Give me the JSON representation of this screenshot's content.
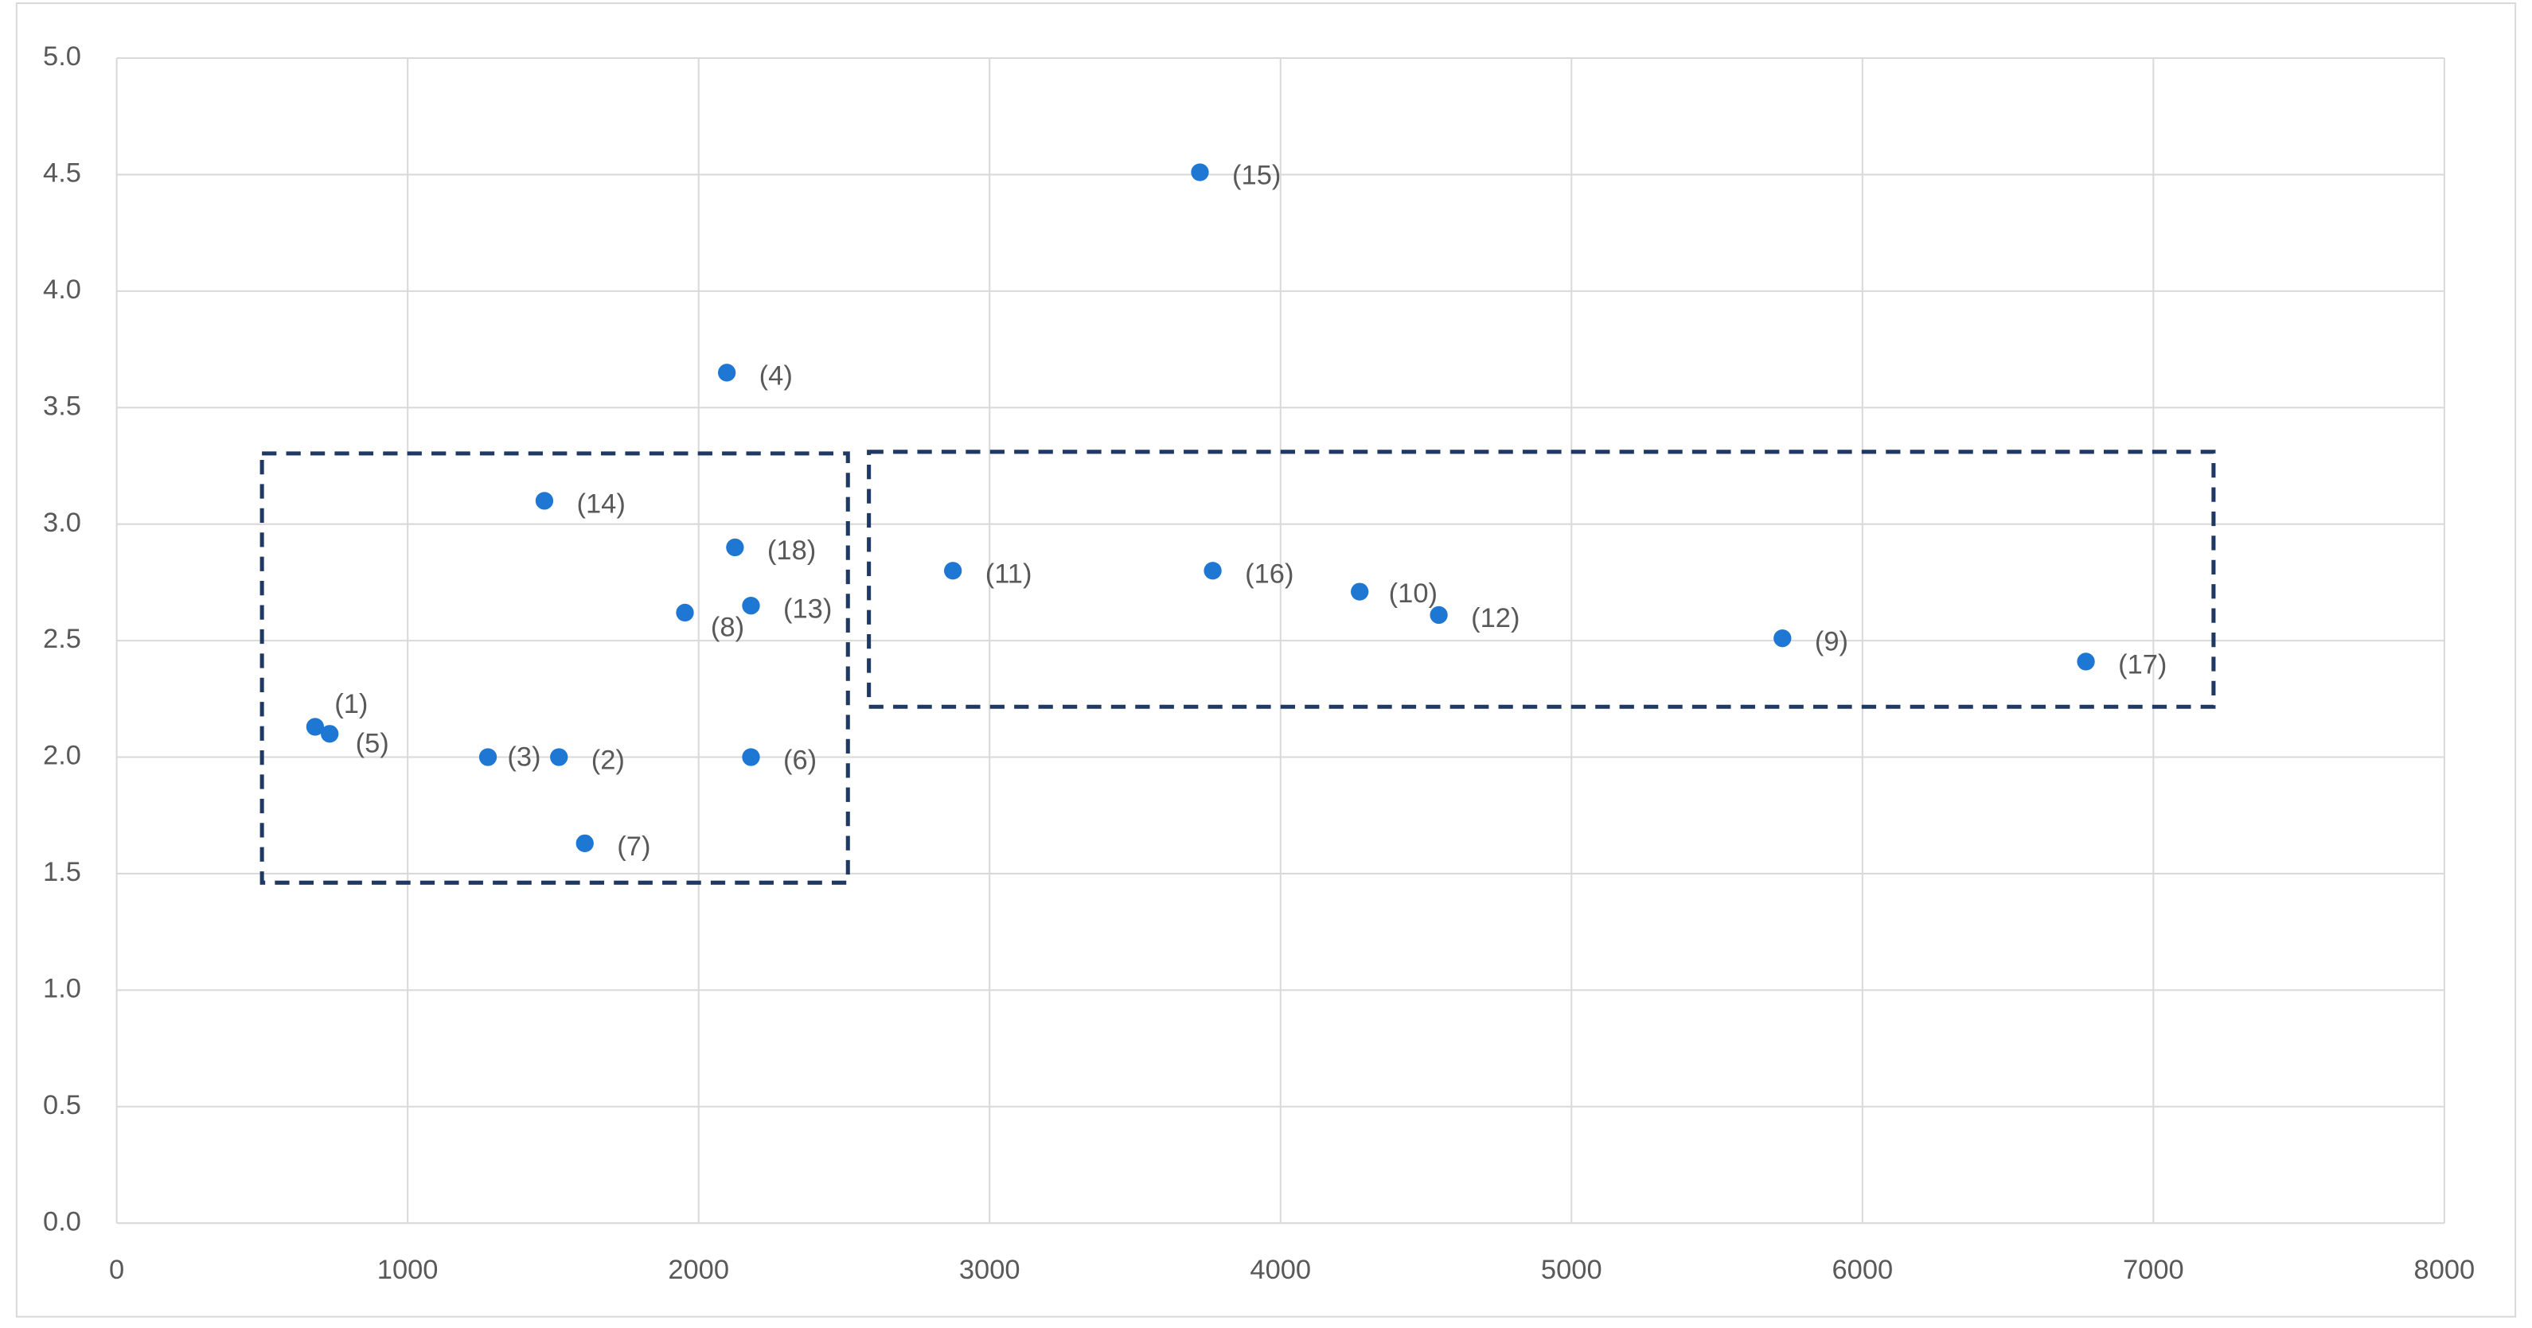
{
  "chart_data": {
    "type": "scatter",
    "x": [
      682,
      1520,
      1276,
      2097,
      732,
      2180,
      1609,
      1953,
      5725,
      4272,
      2874,
      4544,
      2180,
      1470,
      3723,
      3767,
      6768,
      2125
    ],
    "values": [
      2.13,
      2.0,
      2.0,
      3.65,
      2.1,
      2.0,
      1.63,
      2.62,
      2.51,
      2.71,
      2.8,
      2.61,
      2.65,
      3.1,
      4.51,
      2.8,
      2.41,
      2.9
    ],
    "labels": [
      "(1)",
      "(2)",
      "(3)",
      "(4)",
      "(5)",
      "(6)",
      "(7)",
      "(8)",
      "(9)",
      "(10)",
      "(11)",
      "(12)",
      "(13)",
      "(14)",
      "(15)",
      "(16)",
      "(17)",
      "(18)"
    ],
    "color": "#1f77d4",
    "xlim": [
      0,
      8000
    ],
    "xticks": [
      0,
      1000,
      2000,
      3000,
      4000,
      5000,
      6000,
      7000,
      8000
    ],
    "ylim": [
      0,
      5
    ],
    "yticks": [
      {
        "value": 0,
        "label": "0.0"
      },
      {
        "value": 0.5,
        "label": "0.5"
      },
      {
        "value": 1,
        "label": "1.0"
      },
      {
        "value": 1.5,
        "label": "1.5"
      },
      {
        "value": 2,
        "label": "2.0"
      },
      {
        "value": 2.5,
        "label": "2.5"
      },
      {
        "value": 3,
        "label": "3.0"
      },
      {
        "value": 3.5,
        "label": "3.5"
      },
      {
        "value": 4,
        "label": "4.0"
      },
      {
        "value": 4.5,
        "label": "4.5"
      },
      {
        "value": 5,
        "label": "5.0"
      }
    ],
    "grid": true
  }
}
